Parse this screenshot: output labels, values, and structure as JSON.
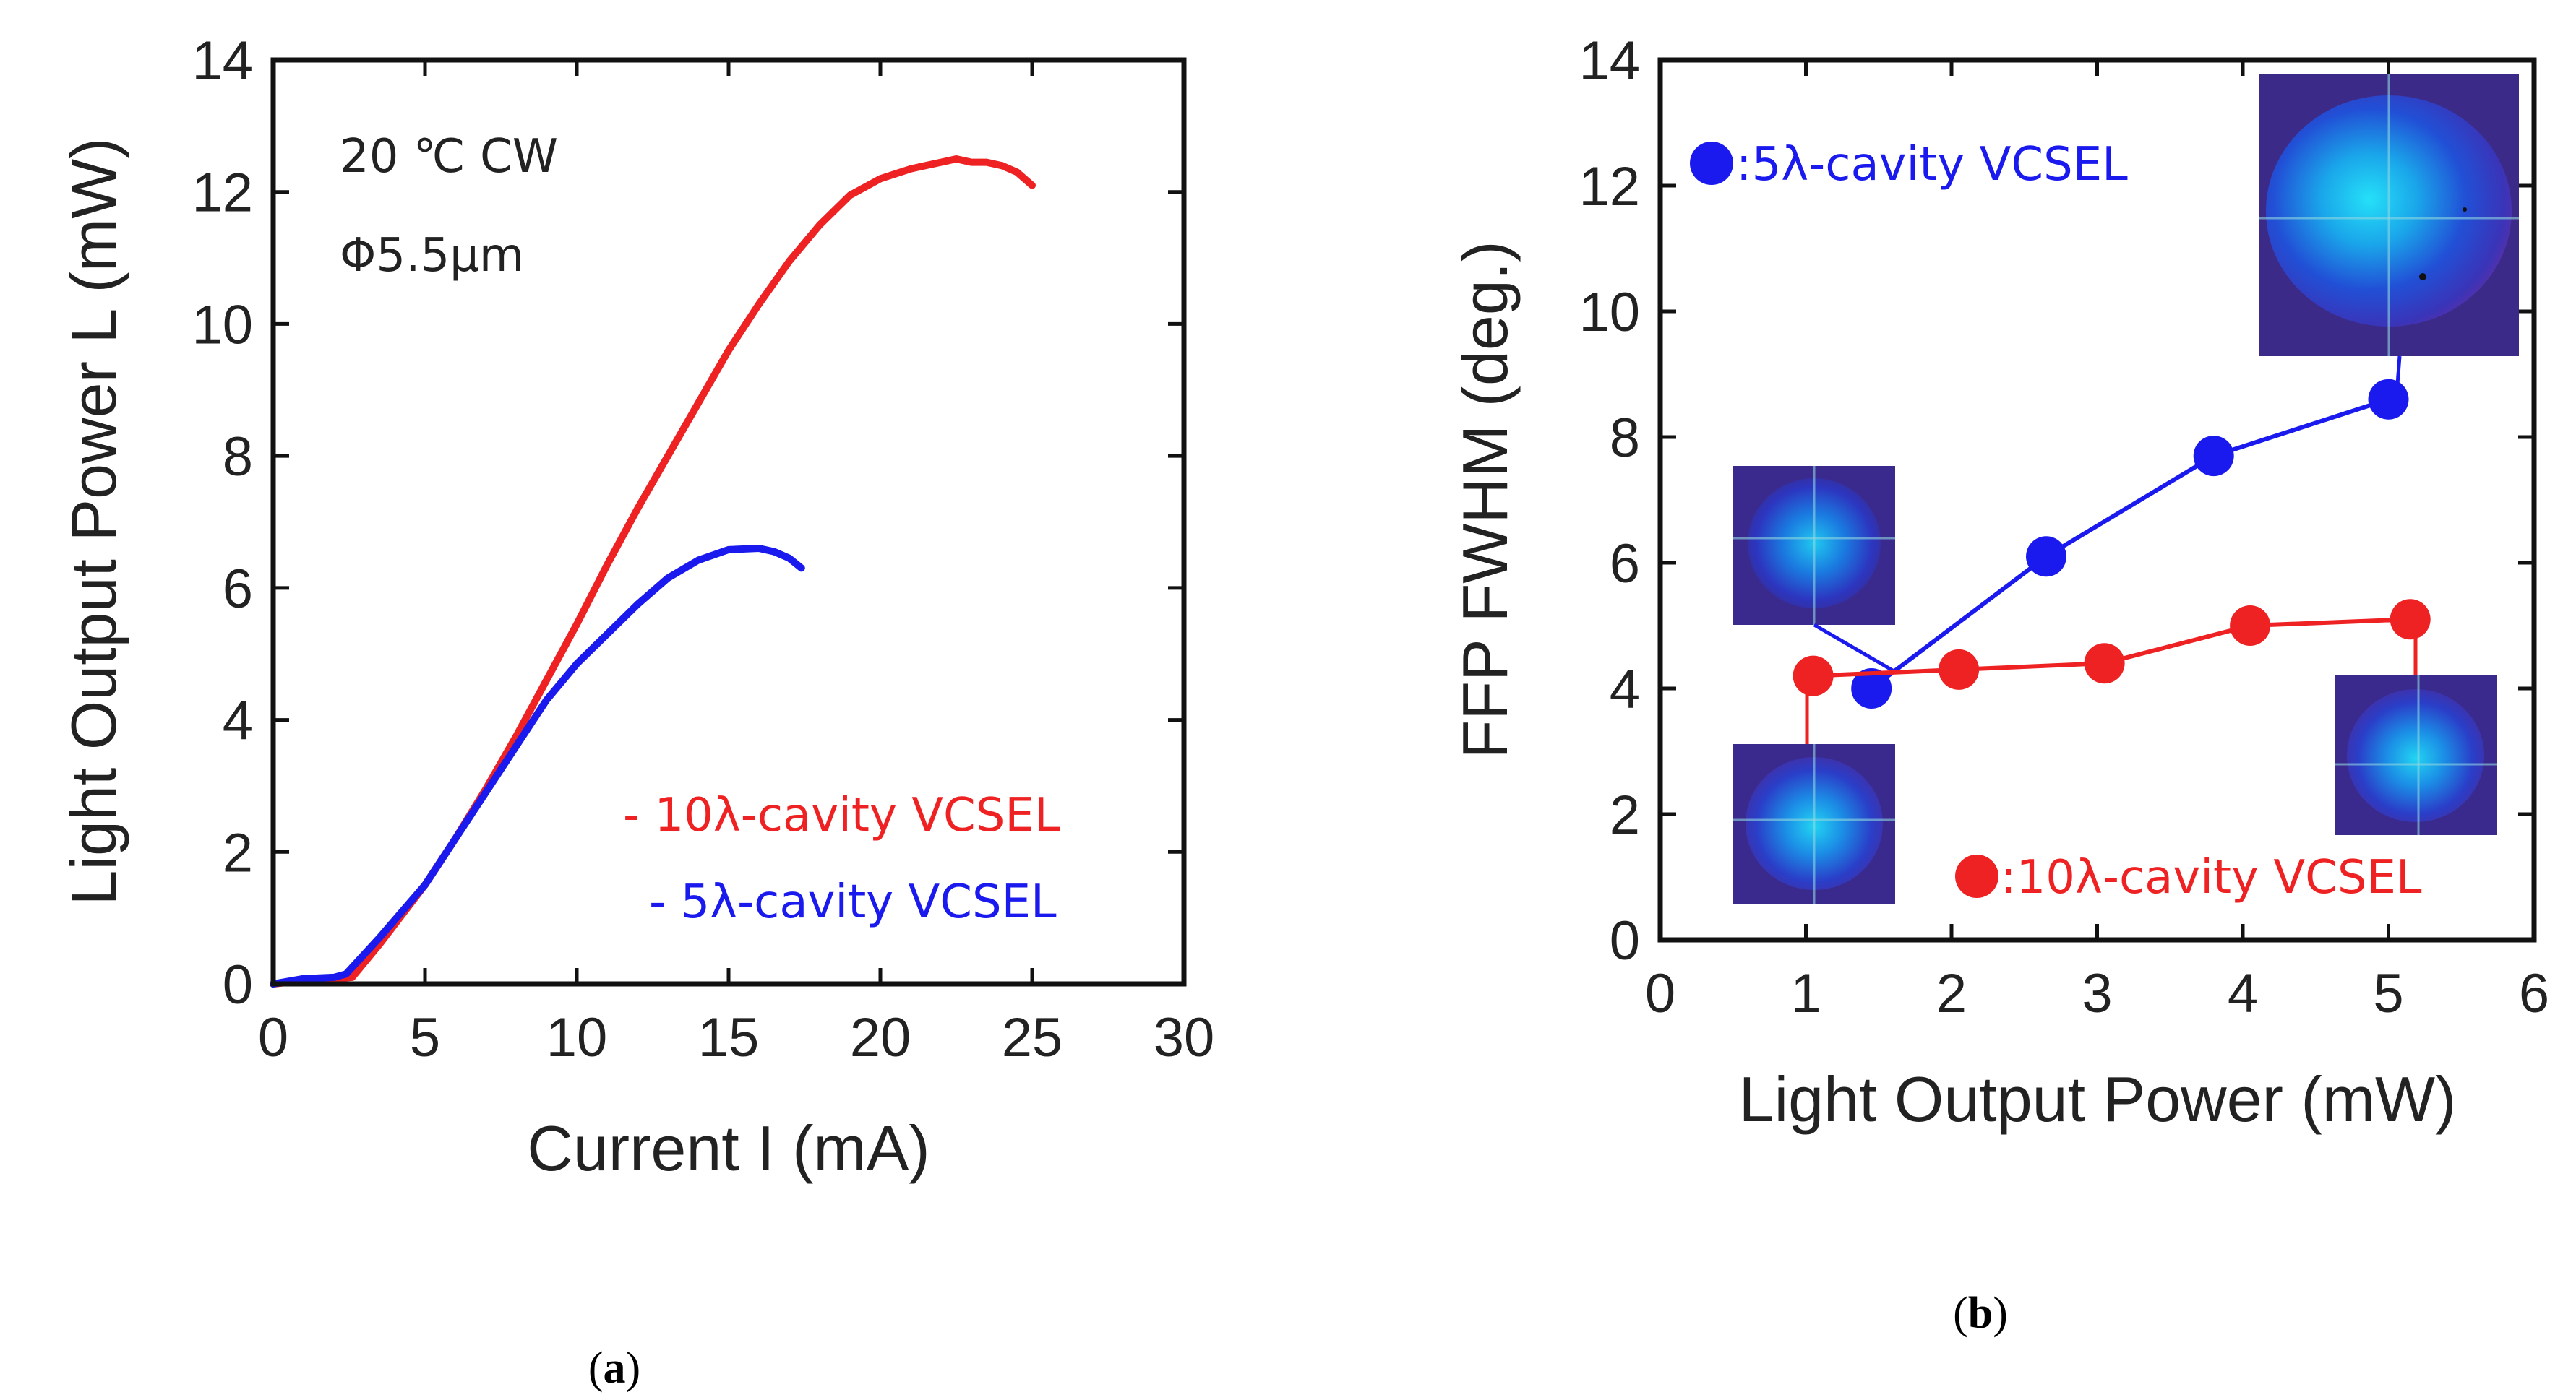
{
  "colors": {
    "red": "#ee2222",
    "blue": "#1a1aee",
    "axis": "#111111"
  },
  "chart_data": [
    {
      "type": "line",
      "panel": "(a)",
      "xlabel": "Current I (mA)",
      "ylabel": "Light Output Power L (mW)",
      "xlim": [
        0,
        30
      ],
      "ylim": [
        0,
        14
      ],
      "xticks": [
        0,
        5,
        10,
        15,
        20,
        25,
        30
      ],
      "yticks": [
        0,
        2,
        4,
        6,
        8,
        10,
        12,
        14
      ],
      "annotations": [
        "20 ℃ CW",
        "Φ5.5μm"
      ],
      "series": [
        {
          "name": "10λ-cavity VCSEL",
          "legend_label": "- 10λ-cavity VCSEL",
          "color": "#ee2222",
          "x": [
            0,
            1,
            2,
            2.6,
            3.5,
            5,
            6,
            7,
            8,
            9,
            10,
            11,
            12,
            13,
            14,
            15,
            16,
            17,
            18,
            19,
            20,
            21,
            22,
            22.5,
            23,
            23.5,
            24,
            24.5,
            25
          ],
          "y": [
            0,
            0.05,
            0.08,
            0.1,
            0.6,
            1.5,
            2.2,
            2.95,
            3.75,
            4.6,
            5.45,
            6.35,
            7.2,
            8.0,
            8.8,
            9.6,
            10.3,
            10.95,
            11.5,
            11.95,
            12.2,
            12.35,
            12.45,
            12.5,
            12.45,
            12.45,
            12.4,
            12.3,
            12.1
          ]
        },
        {
          "name": "5λ-cavity VCSEL",
          "legend_label": "- 5λ-cavity VCSEL",
          "color": "#1a1aee",
          "x": [
            0,
            1,
            2,
            2.4,
            3.5,
            5,
            6,
            7,
            8,
            9,
            10,
            11,
            12,
            13,
            14,
            15,
            16,
            16.5,
            17,
            17.4
          ],
          "y": [
            0,
            0.08,
            0.1,
            0.15,
            0.7,
            1.5,
            2.2,
            2.9,
            3.6,
            4.3,
            4.85,
            5.3,
            5.75,
            6.15,
            6.42,
            6.58,
            6.6,
            6.55,
            6.45,
            6.3
          ]
        }
      ]
    },
    {
      "type": "line",
      "panel": "(b)",
      "xlabel": "Light Output Power (mW)",
      "ylabel": "FFP FWHM (deg.)",
      "xlim": [
        0,
        6
      ],
      "ylim": [
        0,
        14
      ],
      "xticks": [
        0,
        1,
        2,
        3,
        4,
        5,
        6
      ],
      "yticks": [
        0,
        2,
        4,
        6,
        8,
        10,
        12,
        14
      ],
      "series": [
        {
          "name": "5λ-cavity VCSEL",
          "legend_label": ":5λ-cavity VCSEL",
          "color": "#1a1aee",
          "x": [
            1.45,
            2.65,
            3.8,
            5.0
          ],
          "y": [
            4.0,
            6.1,
            7.7,
            8.6
          ]
        },
        {
          "name": "10λ-cavity VCSEL",
          "legend_label": ":10λ-cavity VCSEL",
          "color": "#ee2222",
          "x": [
            1.05,
            2.05,
            3.05,
            4.05,
            5.15
          ],
          "y": [
            4.2,
            4.3,
            4.4,
            5.0,
            5.1
          ]
        }
      ],
      "insets": [
        "far-field pattern 5λ @ 5.0 mW",
        "far-field pattern 5λ @ 1.45 mW",
        "far-field pattern 10λ @ 1.05 mW",
        "far-field pattern 10λ @ 5.15 mW"
      ]
    }
  ]
}
